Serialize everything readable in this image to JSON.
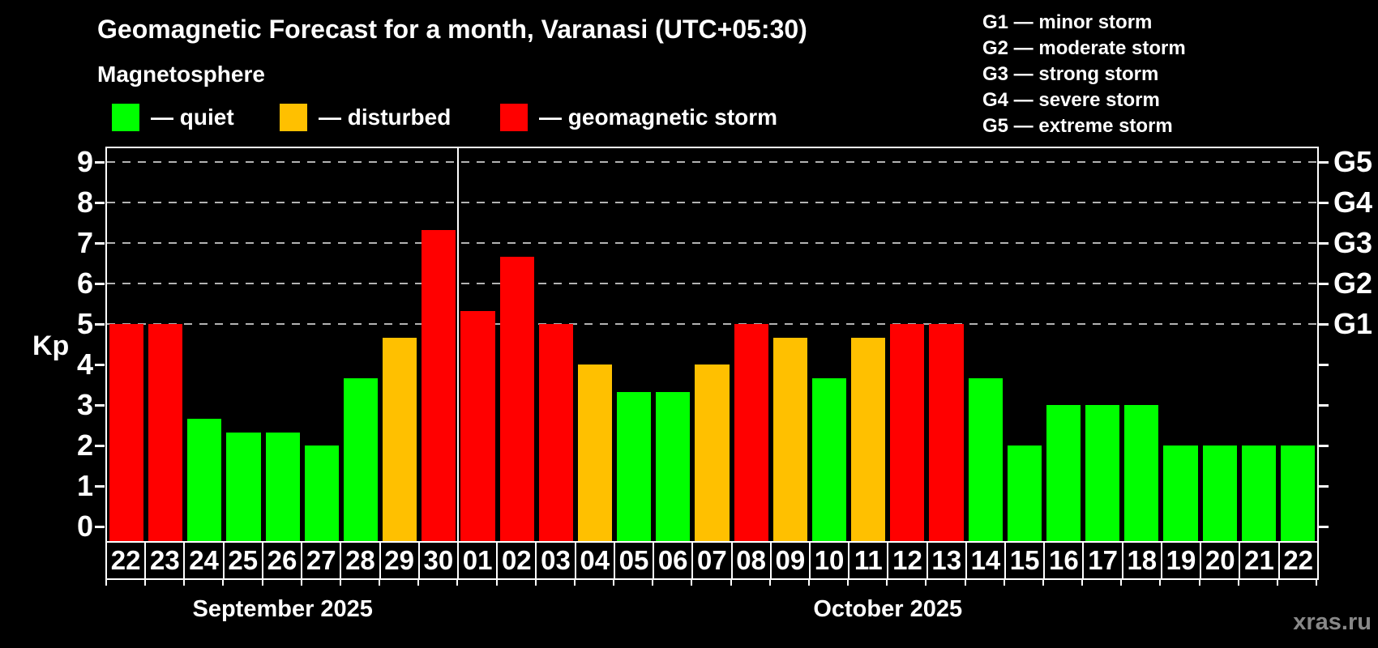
{
  "watermark": "xras.ru",
  "legend": {
    "items": [
      {
        "id": "quiet",
        "label": "— quiet",
        "color": "#00ff00"
      },
      {
        "id": "disturbed",
        "label": "— disturbed",
        "color": "#ffc000"
      },
      {
        "id": "storm",
        "label": "— geomagnetic storm",
        "color": "#ff0000"
      }
    ]
  },
  "g_scale_legend": [
    "G1 — minor storm",
    "G2 — moderate storm",
    "G3 — strong storm",
    "G4 — severe storm",
    "G5 — extreme storm"
  ],
  "chart_data": {
    "type": "bar",
    "title": "Geomagnetic Forecast for a month, Varanasi (UTC+05:30)",
    "subtitle": "Magnetosphere",
    "ylabel": "Kp",
    "ylim": [
      0,
      9
    ],
    "y_ticks": [
      0,
      1,
      2,
      3,
      4,
      5,
      6,
      7,
      8,
      9
    ],
    "gridlines_at": [
      5,
      6,
      7,
      8,
      9
    ],
    "grid": "dashed",
    "legend_position": "top",
    "categories": [
      "22",
      "23",
      "24",
      "25",
      "26",
      "27",
      "28",
      "29",
      "30",
      "01",
      "02",
      "03",
      "04",
      "05",
      "06",
      "07",
      "08",
      "09",
      "10",
      "11",
      "12",
      "13",
      "14",
      "15",
      "16",
      "17",
      "18",
      "19",
      "20",
      "21",
      "22"
    ],
    "values": [
      5,
      5,
      2.67,
      2.33,
      2.33,
      2,
      3.67,
      4.67,
      7.33,
      5.33,
      6.67,
      5,
      4,
      3.33,
      3.33,
      4,
      5,
      4.67,
      3.67,
      4.67,
      5,
      5,
      3.67,
      2,
      3,
      3,
      3,
      2,
      2,
      2,
      2
    ],
    "status": [
      "storm",
      "storm",
      "quiet",
      "quiet",
      "quiet",
      "quiet",
      "quiet",
      "disturbed",
      "storm",
      "storm",
      "storm",
      "storm",
      "disturbed",
      "quiet",
      "quiet",
      "disturbed",
      "storm",
      "disturbed",
      "quiet",
      "disturbed",
      "storm",
      "storm",
      "quiet",
      "quiet",
      "quiet",
      "quiet",
      "quiet",
      "quiet",
      "quiet",
      "quiet",
      "quiet"
    ],
    "months": [
      {
        "label": "September 2025",
        "days": 9
      },
      {
        "label": "October 2025",
        "days": 22
      }
    ],
    "right_axis": [
      {
        "kp": 5,
        "label": "G1"
      },
      {
        "kp": 6,
        "label": "G2"
      },
      {
        "kp": 7,
        "label": "G3"
      },
      {
        "kp": 8,
        "label": "G4"
      },
      {
        "kp": 9,
        "label": "G5"
      }
    ]
  }
}
